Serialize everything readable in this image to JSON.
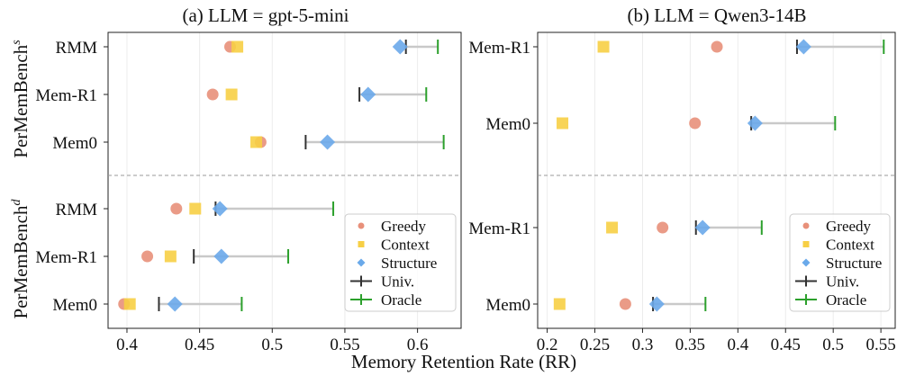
{
  "xlabel": "Memory Retention Rate (RR)",
  "row_labels": [
    "PerMemBench",
    "PerMemBench"
  ],
  "row_label_sups": [
    "s",
    "d"
  ],
  "legend": {
    "entries": [
      {
        "name": "Greedy",
        "color": "#e8907a",
        "marker": "circle"
      },
      {
        "name": "Context",
        "color": "#f7cf45",
        "marker": "square"
      },
      {
        "name": "Structure",
        "color": "#6aa9ea",
        "marker": "diamond"
      },
      {
        "name": "Univ.",
        "color": "#333333",
        "marker": "vbar"
      },
      {
        "name": "Oracle",
        "color": "#2ca02c",
        "marker": "vbar"
      }
    ]
  },
  "chart_data": [
    {
      "type": "scatter",
      "title": "(a) LLM = gpt-5-mini",
      "xlim": [
        0.387,
        0.63
      ],
      "xticks": [
        "0.4",
        "0.45",
        "0.5",
        "0.55",
        "0.6"
      ],
      "xtick_values": [
        0.4,
        0.45,
        0.5,
        0.55,
        0.6
      ],
      "grid": "vertical",
      "legend_position": "bottom-right panel",
      "groups": [
        {
          "name": "PerMemBench^s",
          "rows": [
            {
              "label": "RMM",
              "greedy": 0.471,
              "context": 0.476,
              "structure": 0.588,
              "univ": 0.592,
              "oracle": 0.614
            },
            {
              "label": "Mem-R1",
              "greedy": 0.459,
              "context": 0.472,
              "structure": 0.566,
              "univ": 0.56,
              "oracle": 0.606
            },
            {
              "label": "Mem0",
              "greedy": 0.492,
              "context": 0.489,
              "structure": 0.538,
              "univ": 0.523,
              "oracle": 0.618
            }
          ]
        },
        {
          "name": "PerMemBench^d",
          "rows": [
            {
              "label": "RMM",
              "greedy": 0.434,
              "context": 0.447,
              "structure": 0.464,
              "univ": 0.461,
              "oracle": 0.542
            },
            {
              "label": "Mem-R1",
              "greedy": 0.414,
              "context": 0.43,
              "structure": 0.465,
              "univ": 0.446,
              "oracle": 0.511
            },
            {
              "label": "Mem0",
              "greedy": 0.398,
              "context": 0.402,
              "structure": 0.433,
              "univ": 0.422,
              "oracle": 0.479
            }
          ]
        }
      ]
    },
    {
      "type": "scatter",
      "title": "(b) LLM = Qwen3-14B",
      "xlim": [
        0.19,
        0.565
      ],
      "xticks": [
        "0.2",
        "0.25",
        "0.3",
        "0.35",
        "0.4",
        "0.45",
        "0.5",
        "0.55"
      ],
      "xtick_values": [
        0.2,
        0.25,
        0.3,
        0.35,
        0.4,
        0.45,
        0.5,
        0.55
      ],
      "grid": "vertical",
      "legend_position": "bottom-right panel",
      "groups": [
        {
          "name": "PerMemBench^s",
          "rows": [
            {
              "label": "Mem-R1",
              "greedy": 0.378,
              "context": 0.259,
              "structure": 0.469,
              "univ": 0.462,
              "oracle": 0.553
            },
            {
              "label": "Mem0",
              "greedy": 0.355,
              "context": 0.216,
              "structure": 0.418,
              "univ": 0.414,
              "oracle": 0.502
            }
          ]
        },
        {
          "name": "PerMemBench^d",
          "rows": [
            {
              "label": "Mem-R1",
              "greedy": 0.321,
              "context": 0.268,
              "structure": 0.363,
              "univ": 0.356,
              "oracle": 0.425
            },
            {
              "label": "Mem0",
              "greedy": 0.282,
              "context": 0.213,
              "structure": 0.315,
              "univ": 0.311,
              "oracle": 0.366
            }
          ]
        }
      ]
    }
  ]
}
